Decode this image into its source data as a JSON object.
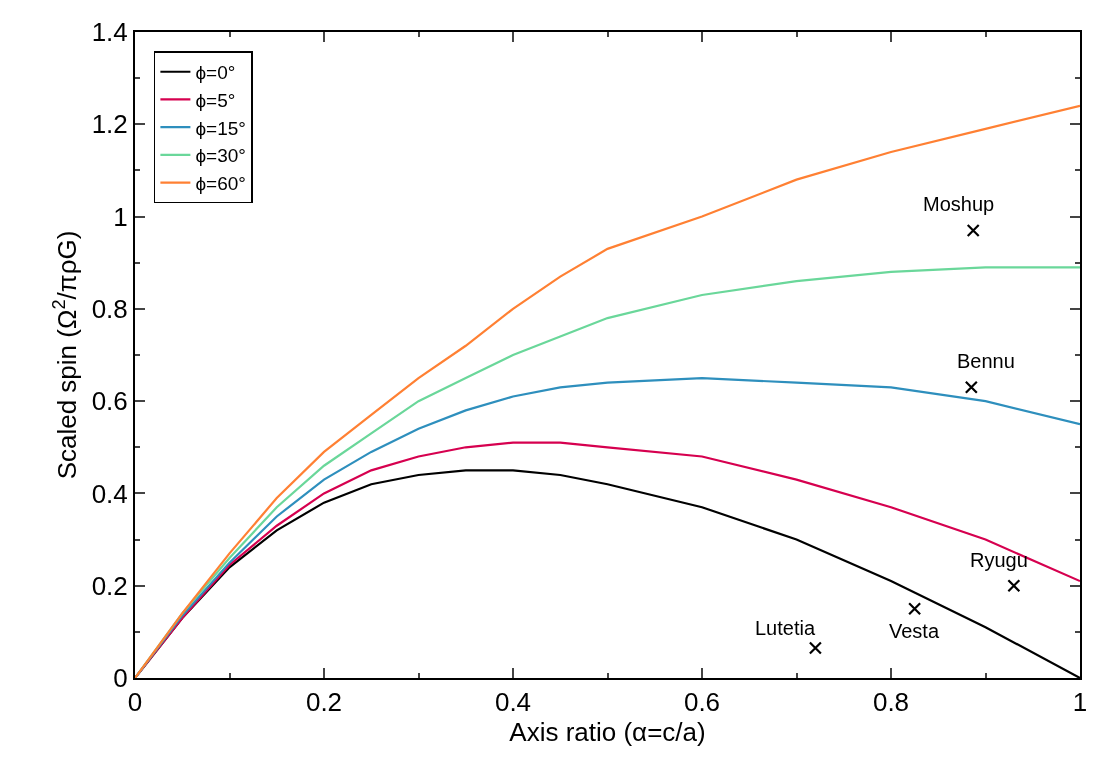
{
  "chart_data": {
    "type": "line",
    "xlabel": "Axis ratio (α=c/a)",
    "ylabel": "Scaled spin (Ω$^{2}$/πρG)",
    "x": [
      0,
      0.05,
      0.1,
      0.15,
      0.2,
      0.25,
      0.3,
      0.35,
      0.4,
      0.45,
      0.5,
      0.6,
      0.7,
      0.8,
      0.9,
      1.0
    ],
    "series": [
      {
        "name": "ϕ=0°",
        "color": "#000000",
        "values": [
          0,
          0.13,
          0.24,
          0.32,
          0.38,
          0.42,
          0.44,
          0.45,
          0.45,
          0.44,
          0.42,
          0.37,
          0.3,
          0.21,
          0.11,
          0
        ]
      },
      {
        "name": "ϕ=5°",
        "color": "#d6004f",
        "values": [
          0,
          0.13,
          0.245,
          0.33,
          0.4,
          0.45,
          0.48,
          0.5,
          0.51,
          0.51,
          0.5,
          0.48,
          0.43,
          0.37,
          0.3,
          0.21
        ]
      },
      {
        "name": "ϕ=15°",
        "color": "#2e8fbd",
        "values": [
          0,
          0.135,
          0.25,
          0.35,
          0.43,
          0.49,
          0.54,
          0.58,
          0.61,
          0.63,
          0.64,
          0.65,
          0.64,
          0.63,
          0.6,
          0.55
        ]
      },
      {
        "name": "ϕ=30°",
        "color": "#6ad79a",
        "values": [
          0,
          0.14,
          0.26,
          0.37,
          0.46,
          0.53,
          0.6,
          0.65,
          0.7,
          0.74,
          0.78,
          0.83,
          0.86,
          0.88,
          0.89,
          0.89
        ]
      },
      {
        "name": "ϕ=60°",
        "color": "#ff8033",
        "values": [
          0,
          0.14,
          0.27,
          0.39,
          0.49,
          0.57,
          0.65,
          0.72,
          0.8,
          0.87,
          0.93,
          1.0,
          1.08,
          1.14,
          1.19,
          1.24
        ]
      },
      {
        "type": "scatter",
        "marker": "cross",
        "color": "#000000",
        "x": [
          0.887,
          0.885,
          0.93,
          0.825,
          0.72
        ],
        "values": [
          0.97,
          0.63,
          0.2,
          0.15,
          0.065
        ]
      }
    ],
    "annotations": [
      {
        "text": "Moshup",
        "x": 0.887,
        "y": 0.97
      },
      {
        "text": "Bennu",
        "x": 0.885,
        "y": 0.63
      },
      {
        "text": "Ryugu",
        "x": 0.93,
        "y": 0.2
      },
      {
        "text": "Vesta",
        "x": 0.825,
        "y": 0.15
      },
      {
        "text": "Lutetia",
        "x": 0.72,
        "y": 0.065
      }
    ],
    "xlim": [
      0,
      1
    ],
    "xticks": [
      0,
      0.2,
      0.4,
      0.6,
      0.8,
      1
    ],
    "ylim": [
      0,
      1.4
    ],
    "yticks": [
      0,
      0.2,
      0.4,
      0.6,
      0.8,
      1,
      1.2,
      1.4
    ],
    "legend": "top left",
    "marker": "none",
    "line_style": "solid"
  }
}
